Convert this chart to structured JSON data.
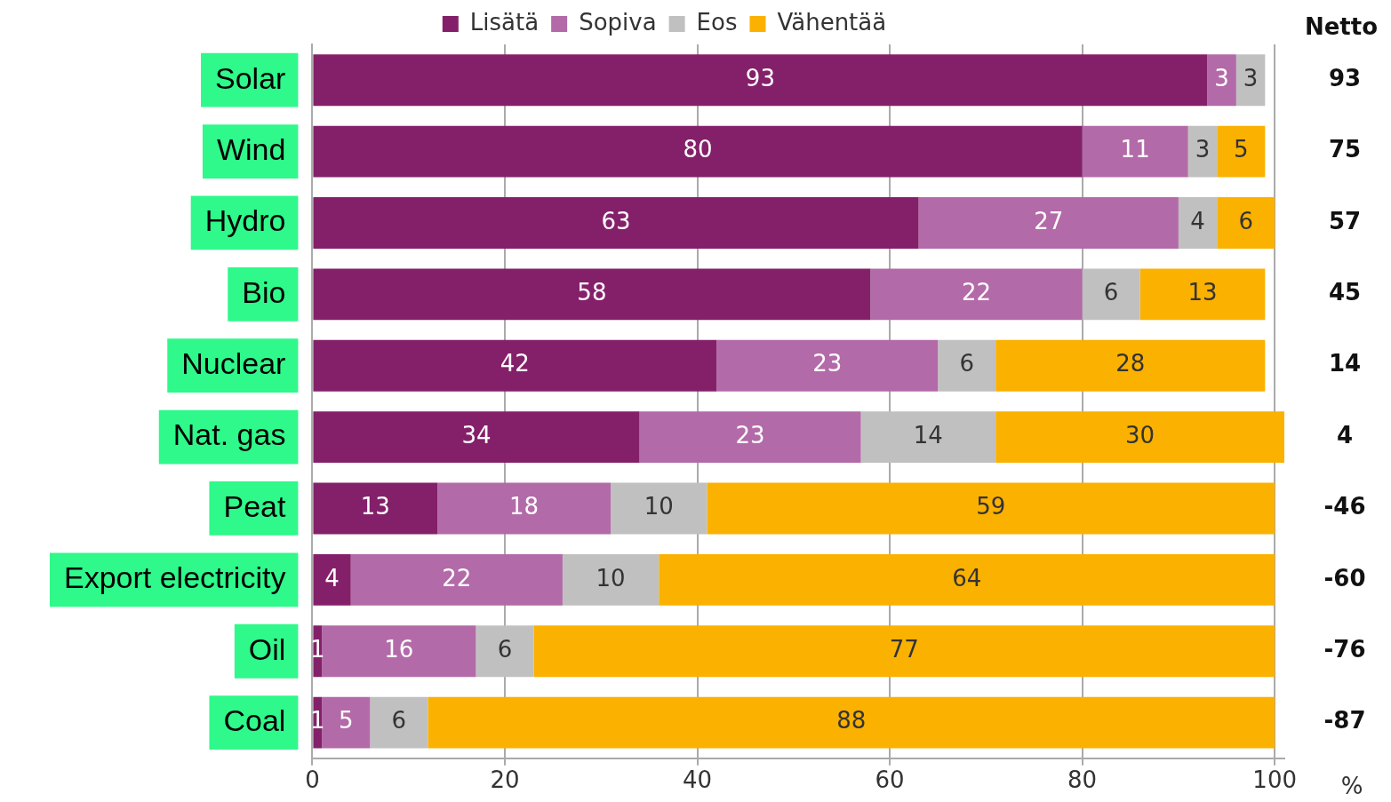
{
  "chart_data": {
    "type": "bar",
    "orientation": "horizontal",
    "stacked": true,
    "data_labels": true,
    "grid": "x",
    "legend": "top",
    "xlabel": "%",
    "categories": [
      "Solar",
      "Wind",
      "Hydro",
      "Bio",
      "Nuclear",
      "Nat. gas",
      "Peat",
      "Export electricity",
      "Oil",
      "Coal"
    ],
    "series": [
      {
        "name": "Lisätä",
        "color": "#84206a",
        "values": [
          93,
          80,
          63,
          58,
          42,
          34,
          13,
          4,
          1,
          1
        ]
      },
      {
        "name": "Sopiva",
        "color": "#b36aa8",
        "values": [
          3,
          11,
          27,
          22,
          23,
          23,
          18,
          22,
          16,
          5
        ]
      },
      {
        "name": "Eos",
        "color": "#c0c0c0",
        "values": [
          3,
          3,
          4,
          6,
          6,
          14,
          10,
          10,
          6,
          6
        ]
      },
      {
        "name": "Vähentää",
        "color": "#fbb100",
        "values": [
          null,
          5,
          6,
          13,
          28,
          30,
          59,
          64,
          77,
          88
        ]
      }
    ],
    "xlim": [
      0,
      101
    ],
    "xticks": [
      0,
      20,
      40,
      60,
      80,
      100
    ],
    "annotations": [
      "Netto",
      "93",
      "75",
      "57",
      "45",
      "14",
      "4",
      "-46",
      "-60",
      "-76",
      "-87"
    ]
  }
}
